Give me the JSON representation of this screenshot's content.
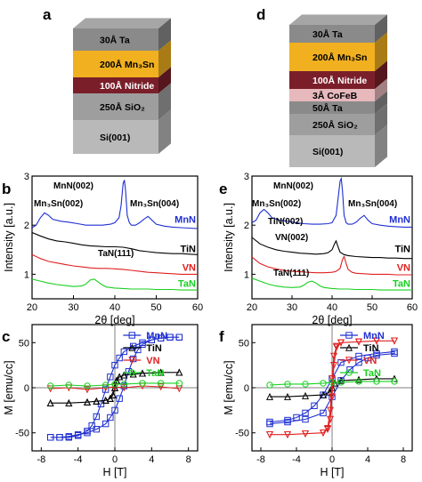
{
  "panels": {
    "a": {
      "label": "a",
      "layers": [
        {
          "text": "30Å Ta",
          "color": "#8a8a8a"
        },
        {
          "text": "200Å Mn₃Sn",
          "color": "#f0b020"
        },
        {
          "text": "100Å Nitride",
          "color": "#7a1f2a"
        },
        {
          "text": "250Å SiO₂",
          "color": "#9e9e9e"
        },
        {
          "text": "Si(001)",
          "color": "#b9b9b9"
        }
      ]
    },
    "d": {
      "label": "d",
      "layers": [
        {
          "text": "30Å Ta",
          "color": "#8a8a8a"
        },
        {
          "text": "200Å Mn₃Sn",
          "color": "#f0b020"
        },
        {
          "text": "100Å Nitride",
          "color": "#7a1f2a"
        },
        {
          "text": "3Å CoFeB",
          "color": "#e7b8bc"
        },
        {
          "text": "50Å Ta",
          "color": "#8a8a8a"
        },
        {
          "text": "250Å SiO₂",
          "color": "#9e9e9e"
        },
        {
          "text": "Si(001)",
          "color": "#b9b9b9"
        }
      ]
    },
    "b": {
      "label": "b"
    },
    "e": {
      "label": "e"
    },
    "c": {
      "label": "c"
    },
    "f": {
      "label": "f"
    }
  },
  "chart_data": [
    {
      "id": "b",
      "type": "line",
      "xlabel": "2θ [deg]",
      "ylabel": "Intensity [a.u.]",
      "xlim": [
        20,
        60
      ],
      "ylim": [
        0.5,
        3
      ],
      "xticks": [
        20,
        30,
        40,
        50,
        60
      ],
      "yticks": [
        1,
        2,
        3
      ],
      "annotations": [
        "MnN(002)",
        "Mn₃Sn(002)",
        "Mn₃Sn(004)",
        "TaN(111)"
      ],
      "series": [
        {
          "name": "MnN",
          "color": "#1f2fd0",
          "x": [
            20,
            21,
            22,
            23,
            24,
            25,
            27,
            29,
            31,
            33,
            35,
            37,
            39,
            40,
            41,
            41.5,
            42,
            42.3,
            42.6,
            43,
            43.5,
            44,
            45,
            46,
            47,
            48,
            49,
            50,
            52,
            54,
            56,
            58,
            60
          ],
          "y": [
            1.95,
            2.0,
            2.15,
            2.25,
            2.2,
            2.12,
            2.08,
            2.06,
            2.03,
            2.0,
            2.0,
            2.0,
            2.02,
            2.05,
            2.15,
            2.4,
            2.85,
            2.92,
            2.7,
            2.2,
            2.05,
            2.0,
            2.0,
            2.05,
            2.12,
            2.18,
            2.1,
            2.02,
            1.98,
            1.96,
            1.95,
            1.94,
            1.93
          ]
        },
        {
          "name": "TiN",
          "color": "#000000",
          "x": [
            20,
            22,
            24,
            26,
            28,
            30,
            32,
            34,
            36,
            38,
            40,
            42,
            44,
            46,
            48,
            50,
            52,
            54,
            56,
            58,
            60
          ],
          "y": [
            1.85,
            1.78,
            1.72,
            1.68,
            1.66,
            1.63,
            1.6,
            1.58,
            1.57,
            1.56,
            1.56,
            1.55,
            1.52,
            1.48,
            1.46,
            1.44,
            1.43,
            1.42,
            1.42,
            1.41,
            1.4
          ]
        },
        {
          "name": "VN",
          "color": "#e02020",
          "x": [
            20,
            22,
            24,
            26,
            28,
            30,
            32,
            34,
            36,
            38,
            40,
            42,
            44,
            46,
            48,
            50,
            52,
            54,
            56,
            58,
            60
          ],
          "y": [
            1.4,
            1.32,
            1.26,
            1.23,
            1.2,
            1.17,
            1.15,
            1.13,
            1.12,
            1.12,
            1.11,
            1.1,
            1.08,
            1.06,
            1.04,
            1.03,
            1.02,
            1.01,
            1.0,
            1.0,
            1.0
          ]
        },
        {
          "name": "TaN",
          "color": "#18d020",
          "x": [
            20,
            22,
            24,
            26,
            28,
            30,
            32,
            33,
            34,
            35,
            36,
            37,
            38,
            40,
            42,
            44,
            46,
            48,
            50,
            52,
            54,
            56,
            58,
            60
          ],
          "y": [
            0.9,
            0.86,
            0.82,
            0.79,
            0.77,
            0.75,
            0.76,
            0.8,
            0.88,
            0.9,
            0.84,
            0.78,
            0.74,
            0.72,
            0.71,
            0.7,
            0.7,
            0.7,
            0.69,
            0.69,
            0.69,
            0.68,
            0.68,
            0.68
          ]
        }
      ]
    },
    {
      "id": "e",
      "type": "line",
      "xlabel": "2θ [deg]",
      "ylabel": "Intensity [a.u.]",
      "xlim": [
        20,
        60
      ],
      "ylim": [
        0.5,
        3
      ],
      "xticks": [
        20,
        30,
        40,
        50,
        60
      ],
      "yticks": [
        1,
        2,
        3
      ],
      "annotations": [
        "MnN(002)",
        "Mn₃Sn(002)",
        "Mn₃Sn(004)",
        "TiN(002)",
        "VN(002)",
        "TaN(111)"
      ],
      "series": [
        {
          "name": "MnN",
          "color": "#1f2fd0",
          "x": [
            20,
            21,
            22,
            23,
            24,
            25,
            27,
            29,
            31,
            33,
            35,
            37,
            39,
            40,
            41,
            41.5,
            42,
            42.3,
            42.6,
            43,
            43.5,
            44,
            45,
            46,
            47,
            48,
            49,
            50,
            52,
            54,
            56,
            58,
            60
          ],
          "y": [
            2.05,
            2.1,
            2.25,
            2.32,
            2.25,
            2.15,
            2.1,
            2.08,
            2.05,
            2.03,
            2.02,
            2.02,
            2.03,
            2.05,
            2.2,
            2.55,
            2.9,
            2.95,
            2.7,
            2.2,
            2.05,
            2.02,
            2.02,
            2.06,
            2.14,
            2.2,
            2.1,
            2.03,
            2.0,
            1.98,
            1.97,
            1.96,
            1.96
          ]
        },
        {
          "name": "TiN",
          "color": "#000000",
          "x": [
            20,
            22,
            24,
            26,
            28,
            30,
            32,
            34,
            36,
            38,
            39,
            40,
            40.6,
            41,
            41.4,
            42,
            43,
            44,
            46,
            48,
            50,
            52,
            54,
            56,
            58,
            60
          ],
          "y": [
            1.75,
            1.62,
            1.55,
            1.5,
            1.47,
            1.45,
            1.43,
            1.42,
            1.41,
            1.42,
            1.44,
            1.5,
            1.62,
            1.68,
            1.58,
            1.45,
            1.4,
            1.38,
            1.36,
            1.35,
            1.34,
            1.34,
            1.33,
            1.33,
            1.32,
            1.32
          ]
        },
        {
          "name": "VN",
          "color": "#e02020",
          "x": [
            20,
            22,
            24,
            26,
            28,
            30,
            32,
            34,
            36,
            38,
            40,
            41,
            42,
            42.6,
            43,
            43.5,
            44,
            45,
            46,
            48,
            50,
            52,
            54,
            56,
            58,
            60
          ],
          "y": [
            1.35,
            1.22,
            1.15,
            1.11,
            1.08,
            1.06,
            1.05,
            1.04,
            1.03,
            1.03,
            1.04,
            1.06,
            1.12,
            1.3,
            1.36,
            1.22,
            1.1,
            1.04,
            1.02,
            1.01,
            1.0,
            1.0,
            1.0,
            0.99,
            0.99,
            0.99
          ]
        },
        {
          "name": "TaN",
          "color": "#18d020",
          "x": [
            20,
            22,
            24,
            26,
            28,
            30,
            32,
            33,
            34,
            35,
            36,
            37,
            38,
            40,
            42,
            44,
            46,
            48,
            50,
            52,
            54,
            56,
            58,
            60
          ],
          "y": [
            0.92,
            0.86,
            0.8,
            0.76,
            0.74,
            0.73,
            0.74,
            0.78,
            0.84,
            0.86,
            0.82,
            0.76,
            0.73,
            0.71,
            0.7,
            0.7,
            0.69,
            0.69,
            0.69,
            0.68,
            0.68,
            0.68,
            0.68,
            0.68
          ]
        }
      ]
    },
    {
      "id": "c",
      "type": "line",
      "xlabel": "H [T]",
      "ylabel": "M [emu/cc]",
      "xlim": [
        -9,
        9
      ],
      "ylim": [
        -70,
        70
      ],
      "xticks": [
        -8,
        -4,
        0,
        4,
        8
      ],
      "yticks": [
        -50,
        0,
        50
      ],
      "series": [
        {
          "name": "MnN",
          "color": "#1f2fd0",
          "marker": "square",
          "x": [
            -7,
            -6,
            -5,
            -4,
            -3,
            -2,
            -1,
            -0.5,
            0,
            0.5,
            1,
            1.5,
            2,
            2.5,
            3,
            4,
            5,
            6,
            7,
            7,
            6,
            5,
            4,
            3,
            2,
            1,
            0.5,
            0,
            -0.5,
            -1,
            -1.5,
            -2,
            -2.5,
            -3,
            -4,
            -5,
            -6,
            -7
          ],
          "y": [
            -55,
            -55,
            -54,
            -52,
            -50,
            -46,
            -40,
            -33,
            -25,
            -12,
            2,
            18,
            32,
            42,
            48,
            53,
            55,
            56,
            56,
            56,
            56,
            55,
            53,
            50,
            46,
            40,
            33,
            25,
            12,
            -2,
            -18,
            -32,
            -42,
            -48,
            -53,
            -55,
            -55,
            -55
          ]
        },
        {
          "name": "TiN",
          "color": "#000000",
          "marker": "triangle",
          "x": [
            -7,
            -5,
            -3,
            -2,
            -1,
            -0.5,
            -0.2,
            0,
            0.2,
            0.5,
            1,
            2,
            3,
            5,
            7,
            7,
            5,
            3,
            2,
            1,
            0.5,
            0.2,
            0,
            -0.2,
            -0.5,
            -1,
            -2,
            -3,
            -5,
            -7
          ],
          "y": [
            -17,
            -17,
            -16,
            -15,
            -14,
            -12,
            -8,
            0,
            8,
            12,
            14,
            15,
            16,
            17,
            17,
            17,
            17,
            16,
            15,
            14,
            12,
            8,
            0,
            -8,
            -12,
            -14,
            -15,
            -16,
            -17,
            -17
          ]
        },
        {
          "name": "VN",
          "color": "#e02020",
          "marker": "triangle-down",
          "x": [
            -7,
            -5,
            -3,
            -1,
            0,
            1,
            3,
            5,
            7
          ],
          "y": [
            -1,
            0,
            -2,
            0,
            1,
            0,
            2,
            1,
            -1
          ]
        },
        {
          "name": "TaN",
          "color": "#18d020",
          "marker": "circle",
          "x": [
            -7,
            -5,
            -3,
            -1,
            0,
            1,
            3,
            5,
            7
          ],
          "y": [
            2,
            3,
            2,
            3,
            4,
            4,
            5,
            5,
            5
          ]
        }
      ]
    },
    {
      "id": "f",
      "type": "line",
      "xlabel": "H [T]",
      "ylabel": "M [emu/cc]",
      "xlim": [
        -9,
        9
      ],
      "ylim": [
        -70,
        70
      ],
      "xticks": [
        -8,
        -4,
        0,
        4,
        8
      ],
      "yticks": [
        -50,
        0,
        50
      ],
      "series": [
        {
          "name": "MnN",
          "color": "#1f2fd0",
          "marker": "square",
          "x": [
            -7,
            -5,
            -3,
            -1,
            0,
            1,
            2,
            3,
            4,
            5,
            7,
            7,
            5,
            3,
            1,
            0,
            -1,
            -2,
            -3,
            -4,
            -5,
            -7
          ],
          "y": [
            -40,
            -38,
            -35,
            -28,
            -10,
            8,
            20,
            28,
            33,
            36,
            38,
            40,
            38,
            35,
            28,
            10,
            -8,
            -20,
            -28,
            -33,
            -36,
            -38
          ]
        },
        {
          "name": "TiN",
          "color": "#000000",
          "marker": "triangle",
          "x": [
            -7,
            -5,
            -3,
            -1,
            -0.3,
            0,
            0.3,
            1,
            3,
            5,
            7
          ],
          "y": [
            -10,
            -10,
            -9,
            -8,
            -5,
            0,
            5,
            8,
            9,
            10,
            10
          ]
        },
        {
          "name": "VN",
          "color": "#e02020",
          "marker": "triangle-down",
          "x": [
            -7,
            -5,
            -3,
            -1,
            -0.5,
            -0.2,
            0,
            0.2,
            0.5,
            1,
            3,
            5,
            7,
            7,
            5,
            3,
            1,
            0.5,
            0.2,
            0,
            -0.2,
            -0.5,
            -1,
            -3,
            -5,
            -7
          ],
          "y": [
            -52,
            -52,
            -51,
            -50,
            -46,
            -35,
            -10,
            25,
            45,
            50,
            51,
            52,
            52,
            52,
            52,
            51,
            50,
            46,
            35,
            10,
            -25,
            -45,
            -50,
            -51,
            -52,
            -52
          ]
        },
        {
          "name": "TaN",
          "color": "#18d020",
          "marker": "circle",
          "x": [
            -7,
            -5,
            -3,
            -1,
            0,
            1,
            3,
            5,
            7
          ],
          "y": [
            3,
            4,
            4,
            5,
            6,
            6,
            7,
            7,
            7
          ]
        }
      ]
    }
  ]
}
